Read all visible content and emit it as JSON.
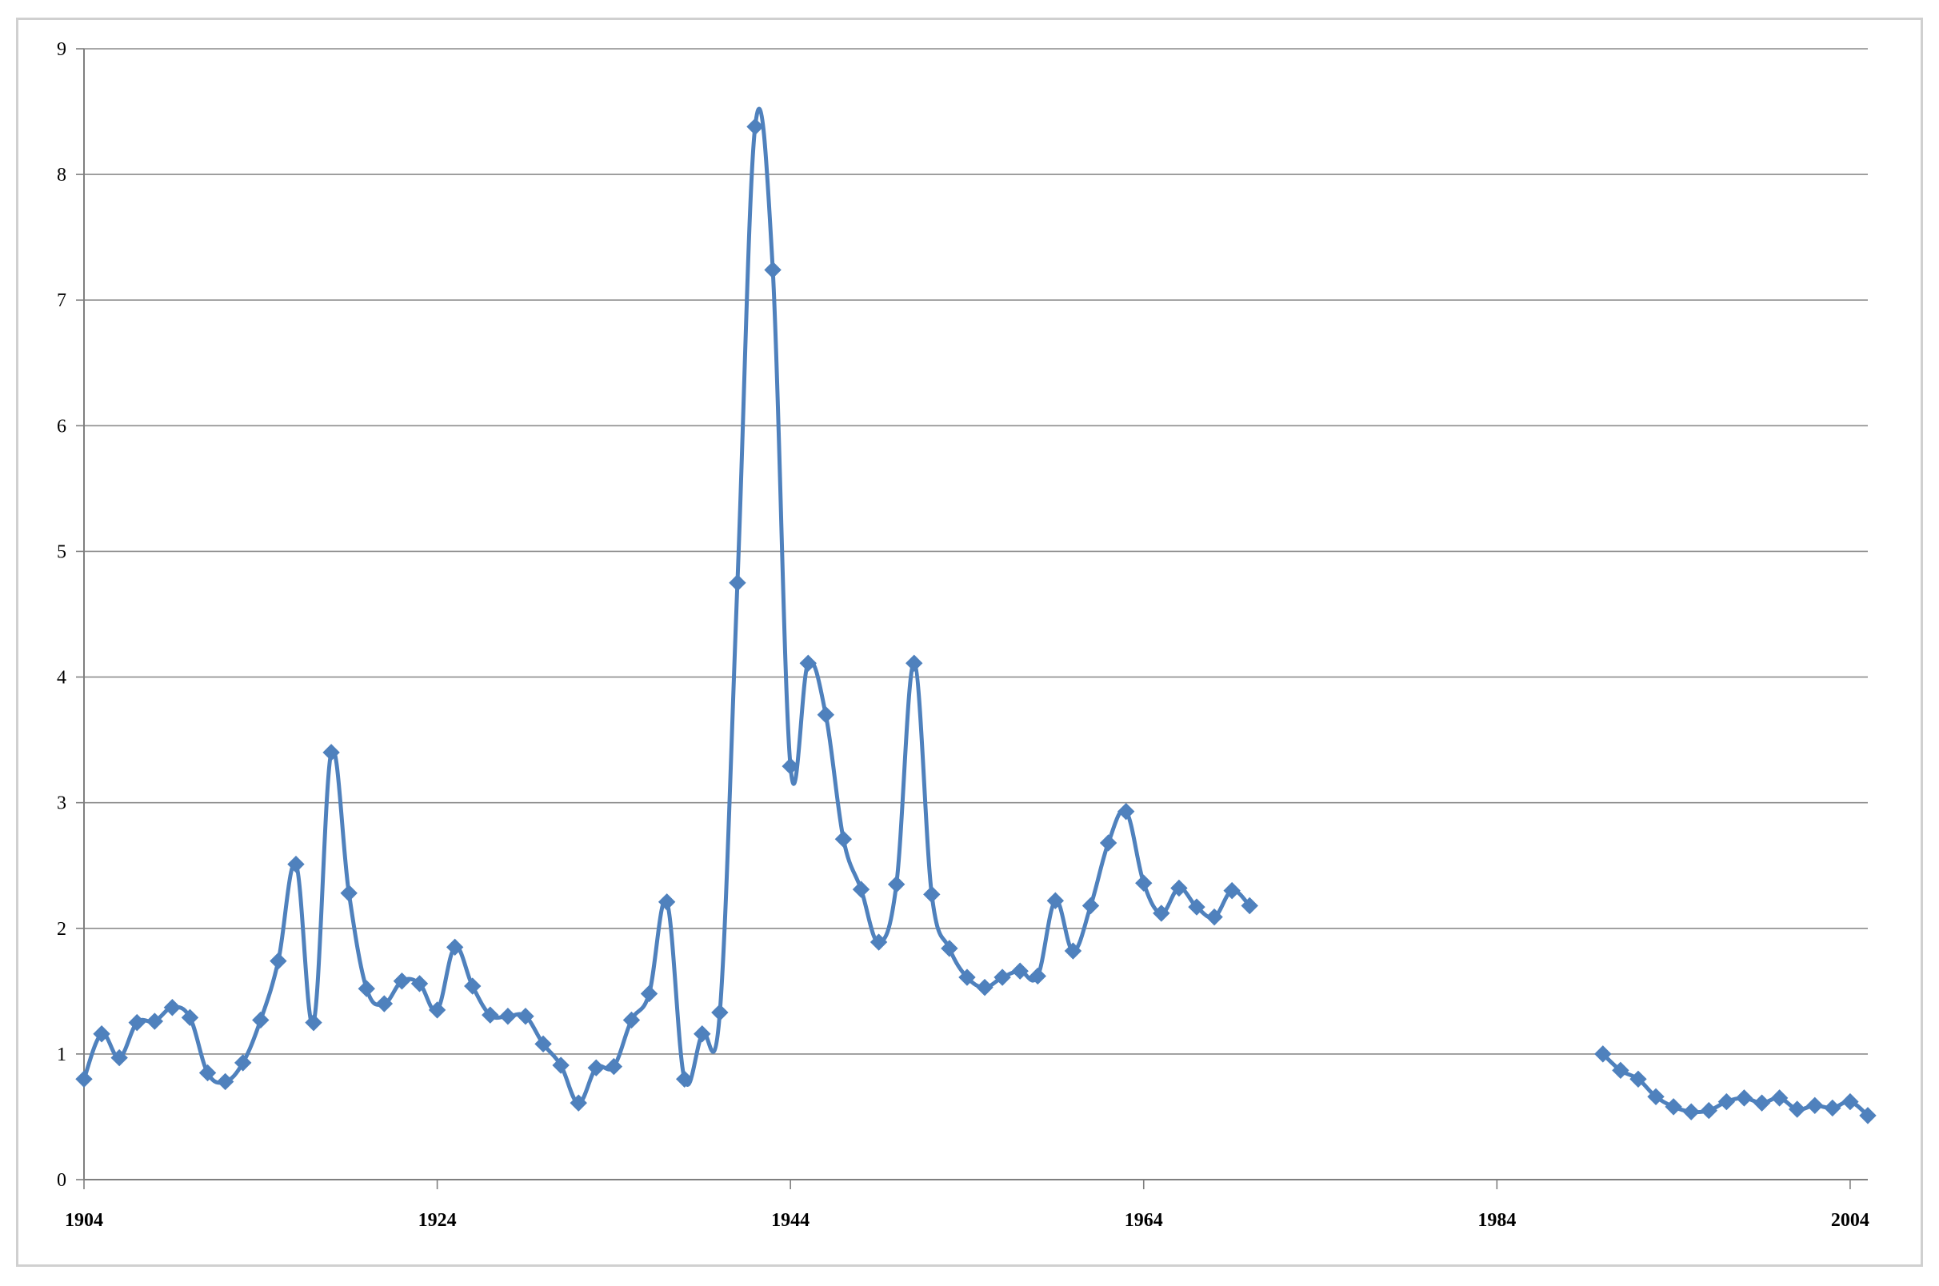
{
  "chart_data": {
    "type": "line",
    "title": "",
    "xlabel": "",
    "ylabel": "",
    "xlim": [
      1904,
      2005
    ],
    "ylim": [
      0,
      9
    ],
    "x_ticks": [
      1904,
      1924,
      1944,
      1964,
      1984,
      2004
    ],
    "x_tick_labels": [
      "1904",
      "1924",
      "1944",
      "1964",
      "1984",
      "2004"
    ],
    "y_ticks": [
      0,
      1,
      2,
      3,
      4,
      5,
      6,
      7,
      8,
      9
    ],
    "y_tick_labels": [
      "0",
      "1",
      "2",
      "3",
      "4",
      "5",
      "6",
      "7",
      "8",
      "9"
    ],
    "grid": true,
    "legend": "none",
    "series_color": "#4f81bd",
    "marker": "diamond",
    "series": [
      {
        "segments": [
          [
            [
              1904,
              0.8
            ],
            [
              1905,
              1.16
            ],
            [
              1906,
              0.97
            ],
            [
              1907,
              1.25
            ],
            [
              1908,
              1.26
            ],
            [
              1909,
              1.37
            ],
            [
              1910,
              1.29
            ],
            [
              1911,
              0.85
            ],
            [
              1912,
              0.78
            ],
            [
              1913,
              0.93
            ],
            [
              1914,
              1.27
            ],
            [
              1915,
              1.74
            ],
            [
              1916,
              2.51
            ],
            [
              1917,
              1.25
            ],
            [
              1918,
              3.4
            ],
            [
              1919,
              2.28
            ],
            [
              1920,
              1.52
            ],
            [
              1921,
              1.4
            ],
            [
              1922,
              1.58
            ],
            [
              1923,
              1.56
            ],
            [
              1924,
              1.35
            ],
            [
              1925,
              1.85
            ],
            [
              1926,
              1.54
            ],
            [
              1927,
              1.31
            ],
            [
              1928,
              1.3
            ],
            [
              1929,
              1.3
            ],
            [
              1930,
              1.08
            ],
            [
              1931,
              0.91
            ],
            [
              1932,
              0.61
            ],
            [
              1933,
              0.89
            ],
            [
              1934,
              0.9
            ],
            [
              1935,
              1.27
            ],
            [
              1936,
              1.48
            ],
            [
              1937,
              2.21
            ],
            [
              1938,
              0.8
            ],
            [
              1939,
              1.16
            ],
            [
              1940,
              1.33
            ],
            [
              1941,
              4.75
            ],
            [
              1942,
              8.38
            ],
            [
              1943,
              7.24
            ],
            [
              1944,
              3.29
            ],
            [
              1945,
              4.11
            ],
            [
              1946,
              3.7
            ],
            [
              1947,
              2.71
            ],
            [
              1948,
              2.31
            ],
            [
              1949,
              1.89
            ],
            [
              1950,
              2.35
            ],
            [
              1951,
              4.11
            ],
            [
              1952,
              2.27
            ],
            [
              1953,
              1.84
            ],
            [
              1954,
              1.61
            ],
            [
              1955,
              1.53
            ],
            [
              1956,
              1.61
            ],
            [
              1957,
              1.66
            ],
            [
              1958,
              1.62
            ],
            [
              1959,
              2.22
            ],
            [
              1960,
              1.82
            ],
            [
              1961,
              2.18
            ],
            [
              1962,
              2.68
            ],
            [
              1963,
              2.93
            ],
            [
              1964,
              2.36
            ],
            [
              1965,
              2.12
            ],
            [
              1966,
              2.32
            ],
            [
              1967,
              2.17
            ],
            [
              1968,
              2.09
            ],
            [
              1969,
              2.3
            ],
            [
              1970,
              2.18
            ]
          ],
          [
            [
              1990,
              1.0
            ],
            [
              1991,
              0.87
            ],
            [
              1992,
              0.8
            ],
            [
              1993,
              0.66
            ],
            [
              1994,
              0.58
            ],
            [
              1995,
              0.54
            ],
            [
              1996,
              0.55
            ],
            [
              1997,
              0.62
            ],
            [
              1998,
              0.65
            ],
            [
              1999,
              0.61
            ],
            [
              2000,
              0.65
            ],
            [
              2001,
              0.56
            ],
            [
              2002,
              0.59
            ],
            [
              2003,
              0.57
            ],
            [
              2004,
              0.62
            ],
            [
              2005,
              0.51
            ]
          ]
        ]
      }
    ]
  }
}
